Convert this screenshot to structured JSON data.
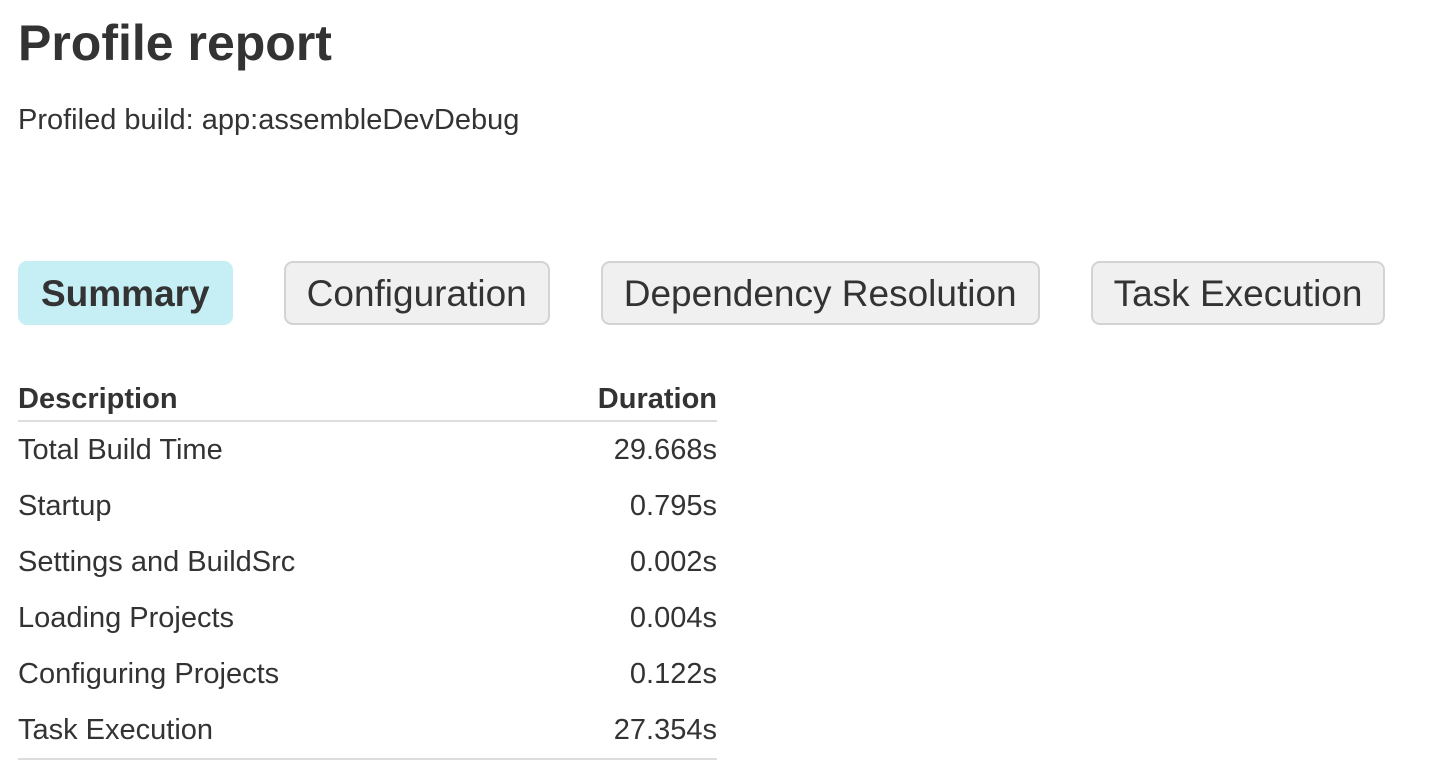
{
  "title": "Profile report",
  "subtitle": "Profiled build: app:assembleDevDebug",
  "colors": {
    "active_tab": "#c5eff5",
    "inactive_tab": "#f0f0f0",
    "text": "#333333"
  },
  "tabs": [
    {
      "label": "Summary",
      "active": true
    },
    {
      "label": "Configuration",
      "active": false
    },
    {
      "label": "Dependency Resolution",
      "active": false
    },
    {
      "label": "Task Execution",
      "active": false
    }
  ],
  "table": {
    "headers": [
      "Description",
      "Duration"
    ],
    "rows": [
      [
        "Total Build Time",
        "29.668s"
      ],
      [
        "Startup",
        "0.795s"
      ],
      [
        "Settings and BuildSrc",
        "0.002s"
      ],
      [
        "Loading Projects",
        "0.004s"
      ],
      [
        "Configuring Projects",
        "0.122s"
      ],
      [
        "Task Execution",
        "27.354s"
      ]
    ]
  }
}
